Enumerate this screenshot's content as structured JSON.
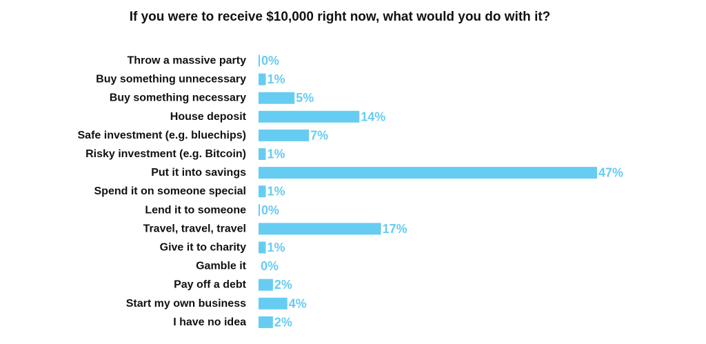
{
  "chart_data": {
    "type": "bar",
    "orientation": "horizontal",
    "title": "If you were to receive $10,000 right now, what would you do with it?",
    "categories": [
      "Throw a massive party",
      "Buy something unnecessary",
      "Buy something necessary",
      "House deposit",
      "Safe investment (e.g. bluechips)",
      "Risky investment (e.g. Bitcoin)",
      "Put it into savings",
      "Spend it on someone special",
      "Lend it to someone",
      "Travel, travel, travel",
      "Give it to charity",
      "Gamble it",
      "Pay off a debt",
      "Start my own business",
      "I have no idea"
    ],
    "values": [
      0,
      1,
      5,
      14,
      7,
      1,
      47,
      1,
      0,
      17,
      1,
      0,
      2,
      4,
      2
    ],
    "data_labels": [
      "0%",
      "1%",
      "5%",
      "14%",
      "7%",
      "1%",
      "47%",
      "1%",
      "0%",
      "17%",
      "1%",
      "0%",
      "2%",
      "4%",
      "2%"
    ],
    "unit": "%",
    "xlim": [
      0,
      47
    ],
    "xlabel": "",
    "ylabel": "",
    "grid": false,
    "legend": "none",
    "colors": {
      "bar": "#66ccf2",
      "label": "#66ccf2",
      "text": "#111111"
    }
  }
}
